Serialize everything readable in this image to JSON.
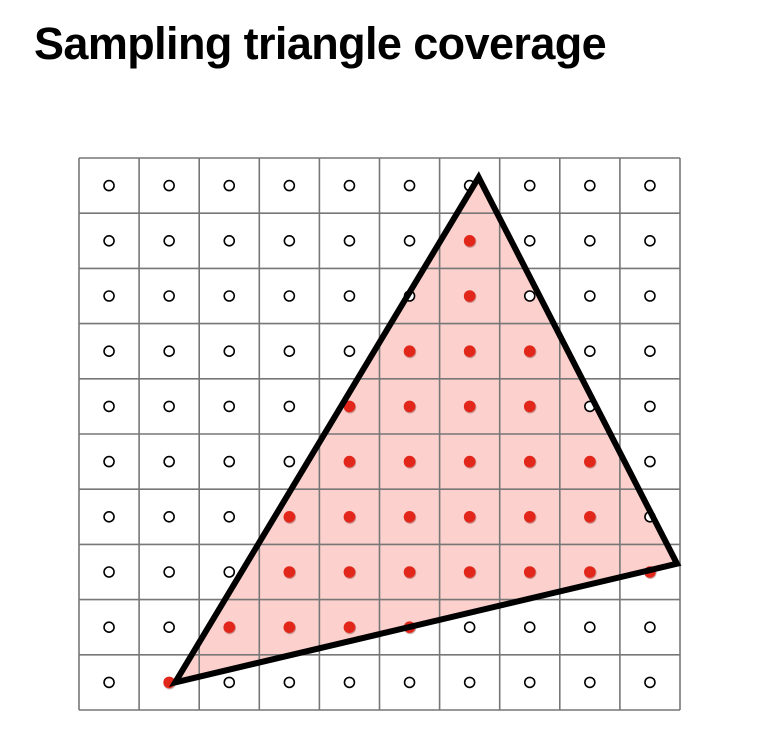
{
  "title": "Sampling triangle  coverage",
  "grid": {
    "columns": 10,
    "rows": 10
  },
  "colors": {
    "grid_line": "#777777",
    "triangle_fill": "#fcd0cc",
    "triangle_stroke": "#000000",
    "covered_sample": "#e3261a",
    "uncovered_sample_stroke": "#000000",
    "uncovered_sample_fill": "#ffffff"
  },
  "triangle_vertices_in_cell_units": [
    [
      6.65,
      0.35
    ],
    [
      9.95,
      7.35
    ],
    [
      1.6,
      9.5
    ]
  ],
  "covered_samples": [
    [
      6,
      1
    ],
    [
      6,
      2
    ],
    [
      5,
      3
    ],
    [
      6,
      3
    ],
    [
      7,
      3
    ],
    [
      4,
      4
    ],
    [
      5,
      4
    ],
    [
      6,
      4
    ],
    [
      7,
      4
    ],
    [
      4,
      5
    ],
    [
      5,
      5
    ],
    [
      6,
      5
    ],
    [
      7,
      5
    ],
    [
      8,
      5
    ],
    [
      3,
      6
    ],
    [
      4,
      6
    ],
    [
      5,
      6
    ],
    [
      6,
      6
    ],
    [
      7,
      6
    ],
    [
      8,
      6
    ],
    [
      3,
      7
    ],
    [
      4,
      7
    ],
    [
      5,
      7
    ],
    [
      6,
      7
    ],
    [
      7,
      7
    ],
    [
      8,
      7
    ],
    [
      9,
      7
    ],
    [
      2,
      8
    ],
    [
      3,
      8
    ],
    [
      4,
      8
    ],
    [
      5,
      8
    ],
    [
      1,
      9
    ]
  ]
}
